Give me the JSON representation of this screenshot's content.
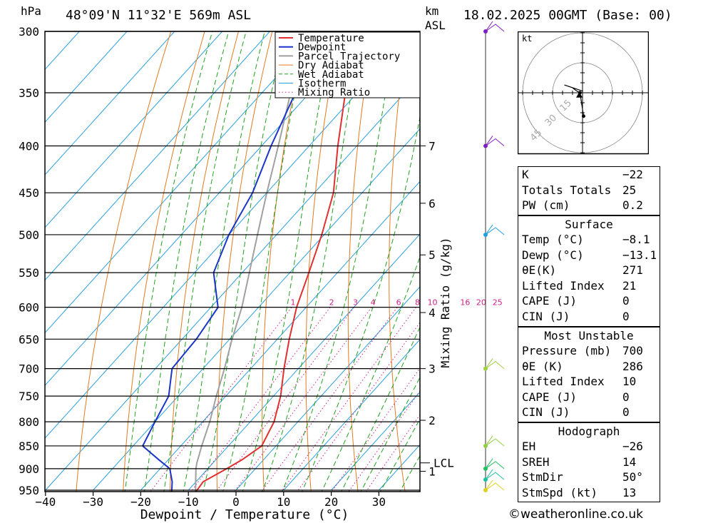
{
  "header": {
    "hpa_label": "hPa",
    "location": "48°09'N 11°32'E 569m ASL",
    "km_label": "km",
    "asl_label": "ASL",
    "datetime": "18.02.2025 00GMT (Base: 00)"
  },
  "footer": {
    "credit": "©weatheronline.co.uk"
  },
  "chart_data": {
    "type": "line",
    "subtype": "skew-T log-P diagram",
    "xlabel": "Dewpoint / Temperature (°C)",
    "ylabel": "hPa",
    "right_axis_label": "Mixing Ratio (g/kg)",
    "pressure_levels": [
      300,
      350,
      400,
      450,
      500,
      550,
      600,
      650,
      700,
      750,
      800,
      850,
      900,
      950
    ],
    "temperature_ticks": [
      -40,
      -30,
      -20,
      -10,
      0,
      10,
      20,
      30
    ],
    "temperature_tick_labels": [
      "−40",
      "−30",
      "−20",
      "−10",
      "0",
      "10",
      "20",
      "30"
    ],
    "ylim": [
      300,
      950
    ],
    "xlim_at_bottom": [
      -40,
      40
    ],
    "km_levels": [
      {
        "km": "7",
        "p": 400
      },
      {
        "km": "6",
        "p": 462
      },
      {
        "km": "5",
        "p": 526
      },
      {
        "km": "4",
        "p": 608
      },
      {
        "km": "3",
        "p": 700
      },
      {
        "km": "2",
        "p": 797
      },
      {
        "km": "1",
        "p": 906
      }
    ],
    "lcl": {
      "label": "LCL",
      "p": 887
    },
    "mixing_ratio_labels": [
      "1",
      "2",
      "3",
      "4",
      "6",
      "8",
      "10",
      "16",
      "20",
      "25"
    ],
    "legend": [
      "Temperature",
      "Dewpoint",
      "Parcel Trajectory",
      "Dry Adiabat",
      "Wet Adiabat",
      "Isotherm",
      "Mixing Ratio"
    ],
    "legend_placement": "top-right",
    "colors": {
      "temperature": "#e03030",
      "dewpoint": "#1a35c8",
      "parcel": "#a0a0a0",
      "dry_adiabat": "#e07b20",
      "wet_adiabat": "#20a020",
      "isotherm": "#2aa0e0",
      "mixing_ratio": "#d0208a"
    },
    "series": [
      {
        "name": "Temperature",
        "points": [
          [
            955,
            -8.1
          ],
          [
            930,
            -8.5
          ],
          [
            900,
            -6.0
          ],
          [
            880,
            -4.5
          ],
          [
            850,
            -3.0
          ],
          [
            800,
            -5.0
          ],
          [
            750,
            -8.5
          ],
          [
            700,
            -13.0
          ],
          [
            650,
            -17.5
          ],
          [
            600,
            -22.0
          ],
          [
            550,
            -26.0
          ],
          [
            500,
            -30.5
          ],
          [
            450,
            -36.0
          ],
          [
            400,
            -44.0
          ],
          [
            350,
            -52.5
          ],
          [
            300,
            -61.0
          ]
        ]
      },
      {
        "name": "Dewpoint",
        "points": [
          [
            955,
            -13.1
          ],
          [
            930,
            -15.0
          ],
          [
            900,
            -18.0
          ],
          [
            880,
            -22.0
          ],
          [
            850,
            -28.0
          ],
          [
            800,
            -30.0
          ],
          [
            750,
            -32.0
          ],
          [
            700,
            -36.5
          ],
          [
            650,
            -37.0
          ],
          [
            600,
            -38.5
          ],
          [
            550,
            -46.0
          ],
          [
            500,
            -50.0
          ],
          [
            450,
            -53.0
          ],
          [
            400,
            -58.0
          ],
          [
            350,
            -63.0
          ],
          [
            300,
            -69.0
          ]
        ]
      },
      {
        "name": "Parcel Trajectory",
        "points": [
          [
            955,
            -8.1
          ],
          [
            900,
            -12.5
          ],
          [
            887,
            -13.4
          ],
          [
            850,
            -15.6
          ],
          [
            800,
            -18.5
          ],
          [
            750,
            -22.0
          ],
          [
            700,
            -25.5
          ],
          [
            650,
            -29.5
          ],
          [
            600,
            -33.5
          ],
          [
            550,
            -38.5
          ],
          [
            500,
            -44.0
          ],
          [
            450,
            -50.0
          ],
          [
            400,
            -56.5
          ],
          [
            350,
            -64.0
          ],
          [
            300,
            -72.0
          ]
        ]
      }
    ]
  },
  "wind_profile": {
    "levels": [
      {
        "p": 300,
        "color": "#8020c0"
      },
      {
        "p": 400,
        "color": "#8020c0"
      },
      {
        "p": 500,
        "color": "#20a0e0"
      },
      {
        "p": 700,
        "color": "#a0d040"
      },
      {
        "p": 850,
        "color": "#90d040"
      },
      {
        "p": 900,
        "color": "#20c060"
      },
      {
        "p": 925,
        "color": "#20c0a0"
      },
      {
        "p": 950,
        "color": "#e0d020"
      }
    ]
  },
  "hodograph": {
    "unit_label": "kt",
    "ring_labels": [
      "15",
      "30",
      "45"
    ],
    "trace": [
      [
        0.2,
        -4.5
      ],
      [
        -0.5,
        0
      ],
      [
        -1.2,
        0.4
      ],
      [
        -2.0,
        1.0
      ],
      [
        -3.5,
        1.5
      ],
      [
        0.1,
        0.3
      ]
    ],
    "storm_motion": {
      "dir_deg": 50,
      "speed_kt": 13
    }
  },
  "indices": {
    "k_label": "K",
    "k_value": "−22",
    "tt_label": "Totals Totals",
    "tt_value": "25",
    "pw_label": "PW (cm)",
    "pw_value": "0.2",
    "surface_title": "Surface",
    "surface_rows": [
      {
        "label": "Temp (°C)",
        "value": "−8.1"
      },
      {
        "label": "Dewp (°C)",
        "value": "−13.1"
      },
      {
        "label": "θE(K)",
        "value": "271"
      },
      {
        "label": "Lifted Index",
        "value": "21"
      },
      {
        "label": "CAPE (J)",
        "value": "0"
      },
      {
        "label": "CIN (J)",
        "value": "0"
      }
    ],
    "mu_title": "Most Unstable",
    "mu_rows": [
      {
        "label": "Pressure (mb)",
        "value": "700"
      },
      {
        "label": "θE (K)",
        "value": "286"
      },
      {
        "label": "Lifted Index",
        "value": "10"
      },
      {
        "label": "CAPE (J)",
        "value": "0"
      },
      {
        "label": "CIN (J)",
        "value": "0"
      }
    ],
    "hodo_title": "Hodograph",
    "hodo_rows": [
      {
        "label": "EH",
        "value": "−26"
      },
      {
        "label": "SREH",
        "value": "14"
      },
      {
        "label": "StmDir",
        "value": "50°"
      },
      {
        "label": "StmSpd (kt)",
        "value": "13"
      }
    ]
  }
}
